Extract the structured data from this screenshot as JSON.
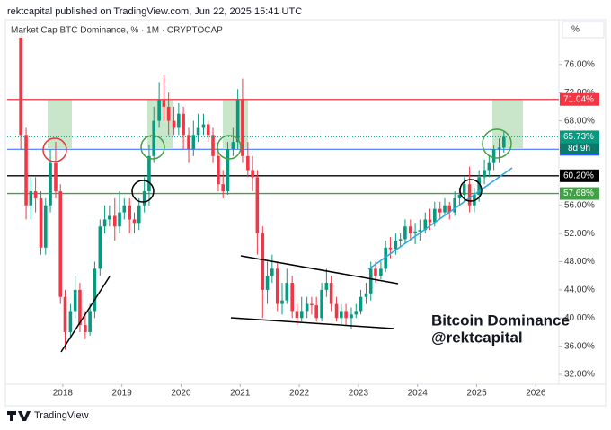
{
  "header": {
    "text": "rektcapital published on TradingView.com, Jun 22, 2025 15:41 UTC"
  },
  "footer": {
    "brand": "TradingView"
  },
  "chart_data": {
    "type": "candlestick",
    "title": "Market Cap BTC Dominance, % · 1M · CRYPTOCAP",
    "unit_button": "%",
    "up_color": "#089981",
    "down_color": "#f23645",
    "x": [
      2017.29,
      2017.38,
      2017.46,
      2017.54,
      2017.63,
      2017.71,
      2017.79,
      2017.88,
      2017.96,
      2018.04,
      2018.13,
      2018.21,
      2018.29,
      2018.38,
      2018.46,
      2018.54,
      2018.63,
      2018.71,
      2018.79,
      2018.88,
      2018.96,
      2019.04,
      2019.13,
      2019.21,
      2019.29,
      2019.38,
      2019.46,
      2019.54,
      2019.63,
      2019.71,
      2019.79,
      2019.88,
      2019.96,
      2020.04,
      2020.13,
      2020.21,
      2020.29,
      2020.38,
      2020.46,
      2020.54,
      2020.63,
      2020.71,
      2020.79,
      2020.88,
      2020.96,
      2021.04,
      2021.13,
      2021.21,
      2021.29,
      2021.38,
      2021.46,
      2021.54,
      2021.63,
      2021.71,
      2021.79,
      2021.88,
      2021.96,
      2022.04,
      2022.13,
      2022.21,
      2022.29,
      2022.38,
      2022.46,
      2022.54,
      2022.63,
      2022.71,
      2022.79,
      2022.88,
      2022.96,
      2023.04,
      2023.13,
      2023.21,
      2023.29,
      2023.38,
      2023.46,
      2023.54,
      2023.63,
      2023.71,
      2023.79,
      2023.88,
      2023.96,
      2024.04,
      2024.13,
      2024.21,
      2024.29,
      2024.38,
      2024.46,
      2024.54,
      2024.63,
      2024.71,
      2024.79,
      2024.88,
      2024.96,
      2025.04,
      2025.13,
      2025.21,
      2025.29,
      2025.38,
      2025.46
    ],
    "open": [
      80,
      66,
      56,
      58,
      57,
      50,
      56,
      62,
      58,
      43,
      38,
      41,
      44,
      39,
      38,
      41,
      47,
      53,
      54,
      54.5,
      53,
      55,
      56,
      54,
      53.5,
      56,
      58,
      63,
      68,
      71,
      70,
      68,
      67,
      69,
      66,
      64,
      66,
      67,
      67.5,
      66,
      63,
      59,
      58,
      64,
      65,
      71,
      63,
      61,
      60,
      52,
      44,
      46,
      47,
      42,
      42.5,
      45,
      41,
      40,
      41,
      42,
      41.8,
      40,
      44,
      45,
      42,
      40,
      41,
      40,
      40.5,
      41,
      43,
      43.5,
      47,
      46,
      47,
      50,
      49.8,
      51,
      51.2,
      53,
      52,
      52.3,
      52.5,
      54,
      53.6,
      55.5,
      55,
      56,
      55,
      57,
      57.5,
      59,
      56,
      57.5,
      60,
      61,
      62,
      64,
      64.2
    ],
    "high": [
      80.5,
      67,
      60,
      60,
      58,
      57,
      64,
      65,
      59,
      44,
      42,
      46,
      45,
      41,
      42,
      48,
      54,
      56,
      56,
      57,
      58,
      57,
      57,
      55,
      57,
      60,
      64.5,
      70,
      73.5,
      74.5,
      72,
      70,
      70.5,
      70,
      67,
      68,
      69,
      69,
      68,
      67,
      64,
      61,
      65,
      67,
      72.5,
      74,
      65,
      63,
      61,
      53,
      48,
      49,
      48,
      45,
      47,
      46,
      42,
      43,
      43,
      43,
      43,
      45,
      47,
      46,
      43,
      42,
      42,
      41.5,
      42,
      44,
      45,
      48,
      48,
      48,
      51,
      51.5,
      52,
      52,
      54,
      54,
      53.5,
      54,
      55,
      55.5,
      56.5,
      56.5,
      57,
      56.5,
      58,
      58.5,
      60,
      61.5,
      58.5,
      61,
      62.5,
      63,
      64.5,
      65.5,
      66.5
    ],
    "low": [
      64,
      54,
      54,
      55,
      49,
      49,
      55,
      57,
      42,
      35.5,
      37,
      40,
      38,
      37,
      37.5,
      40,
      46,
      52,
      53,
      51,
      52,
      54,
      52,
      52,
      52.5,
      55,
      56,
      62,
      67,
      68,
      66,
      66,
      66,
      64,
      62,
      63,
      65,
      66,
      65,
      62,
      58,
      57,
      57.5,
      63,
      64,
      62,
      60,
      58,
      49,
      40,
      42,
      45,
      41,
      40.5,
      42,
      40,
      39,
      39.5,
      40,
      40.5,
      39.5,
      39.5,
      43,
      41,
      39.5,
      39,
      39,
      38.5,
      40,
      40.5,
      42,
      42.5,
      45,
      45.5,
      46.5,
      48.5,
      49,
      50,
      50.5,
      51,
      50.5,
      51,
      52,
      52.5,
      53,
      54,
      54.5,
      54,
      54.5,
      56,
      56.5,
      55,
      55,
      56.5,
      59,
      60,
      61,
      62,
      63.5
    ],
    "close": [
      66,
      56,
      58,
      57,
      50,
      56,
      62,
      58,
      43,
      38,
      41,
      44,
      39,
      38,
      41,
      47,
      53,
      54,
      54.5,
      53,
      55,
      56,
      54,
      53.5,
      56,
      58,
      63,
      68,
      71,
      70,
      68,
      67,
      69,
      66,
      64,
      66,
      67,
      67.5,
      66,
      63,
      59,
      58,
      64,
      65,
      71,
      63,
      61,
      60,
      52,
      44,
      46,
      47,
      42,
      42.5,
      45,
      41,
      40,
      41,
      42,
      41.8,
      40,
      44,
      45,
      42,
      40,
      41,
      40,
      40.5,
      41,
      43,
      43.5,
      47,
      46,
      47,
      50,
      49.8,
      51,
      51.2,
      53,
      52,
      52.3,
      52.5,
      54,
      53.6,
      55.5,
      55,
      56,
      55,
      57,
      57.5,
      59,
      56,
      57.5,
      60,
      61,
      62,
      64,
      64.2,
      65.73
    ],
    "xlim": [
      2017.06,
      2026.39
    ],
    "xticks": [
      2018,
      2019,
      2020,
      2021,
      2022,
      2023,
      2024,
      2025,
      2026
    ],
    "ylim": [
      30.6,
      82.1
    ],
    "yticks": [
      {
        "value": 32,
        "label": "32.00%"
      },
      {
        "value": 36,
        "label": "36.00%"
      },
      {
        "value": 40,
        "label": "40.00%"
      },
      {
        "value": 44,
        "label": "44.00%"
      },
      {
        "value": 48,
        "label": "48.00%"
      },
      {
        "value": 52,
        "label": "52.00%"
      },
      {
        "value": 56,
        "label": "56.00%"
      },
      {
        "value": 68,
        "label": "68.00%"
      },
      {
        "value": 72,
        "label": "72.00%"
      },
      {
        "value": 76,
        "label": "76.00%"
      }
    ],
    "grid": false,
    "levels": [
      {
        "value": 71.04,
        "label": "71.04%",
        "color": "#f23645"
      },
      {
        "value": 63.96,
        "label": "63.96%",
        "color": "#2962ff"
      },
      {
        "value": 60.2,
        "label": "60.20%",
        "color": "#000000"
      },
      {
        "value": 57.68,
        "label": "57.68%",
        "color": "#43a047"
      }
    ],
    "last_price": {
      "value": 65.73,
      "label": "65.73%",
      "color": "#089981"
    },
    "countdown": "8d 9h",
    "annotations": [
      "Bitcoin Dominance",
      "@rektcapital"
    ]
  }
}
